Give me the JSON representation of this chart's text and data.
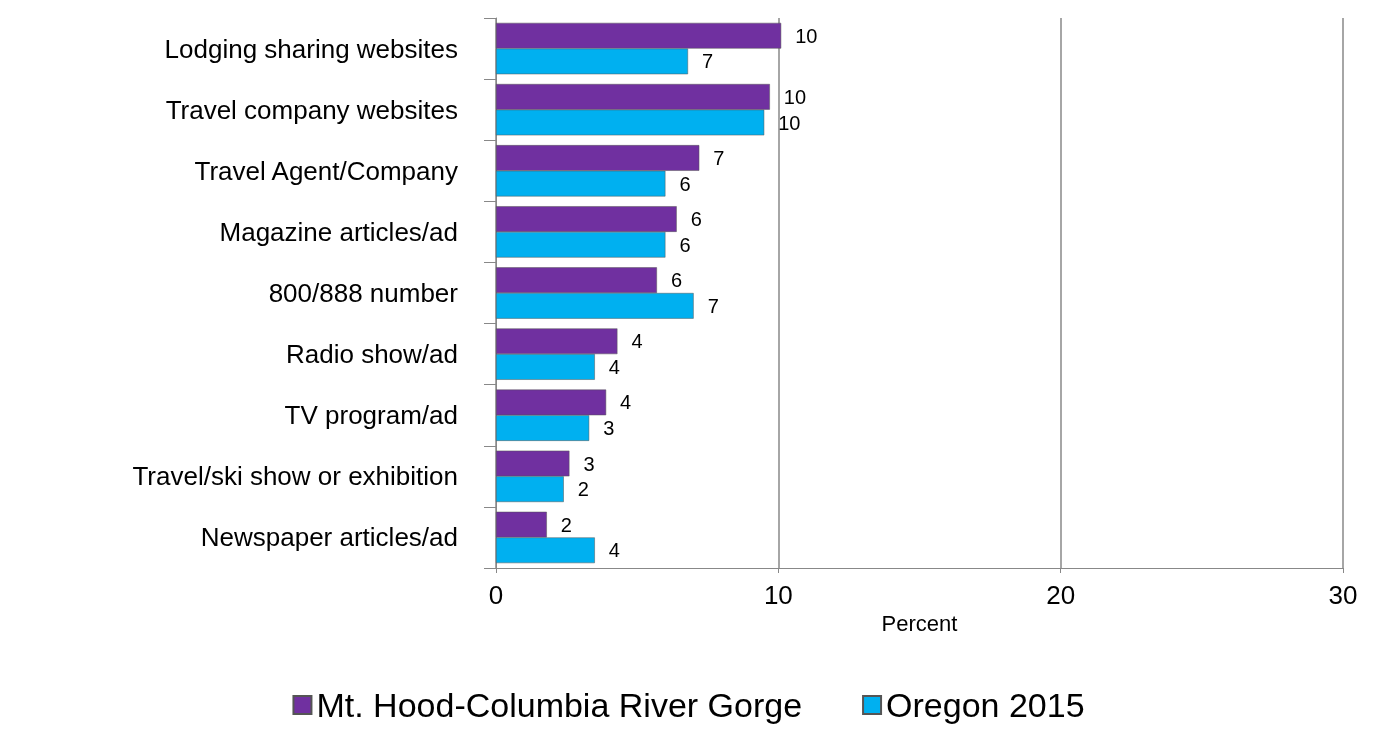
{
  "chart_data": {
    "type": "bar",
    "orientation": "horizontal",
    "xlabel": "Percent",
    "categories": [
      "Lodging sharing websites",
      "Travel company websites",
      "Travel Agent/Company",
      "Magazine articles/ad",
      "800/888 number",
      "Radio show/ad",
      "TV program/ad",
      "Travel/ski show or exhibition",
      "Newspaper articles/ad"
    ],
    "series": [
      {
        "name": "Mt. Hood-Columbia River Gorge",
        "color": "#7030a0",
        "values": [
          10.1,
          9.7,
          7.2,
          6.4,
          5.7,
          4.3,
          3.9,
          2.6,
          1.8
        ],
        "value_labels": [
          "10",
          "10",
          "7",
          "6",
          "6",
          "4",
          "4",
          "3",
          "2"
        ]
      },
      {
        "name": "Oregon 2015",
        "color": "#00b0f0",
        "values": [
          6.8,
          9.5,
          6.0,
          6.0,
          7.0,
          3.5,
          3.3,
          2.4,
          3.5
        ],
        "value_labels": [
          "7",
          "10",
          "6",
          "6",
          "7",
          "4",
          "3",
          "2",
          "4"
        ]
      }
    ],
    "xlim": [
      0,
      30
    ],
    "xticks": [
      0,
      10,
      20,
      30
    ],
    "grid": "x",
    "legend": "bottom"
  }
}
